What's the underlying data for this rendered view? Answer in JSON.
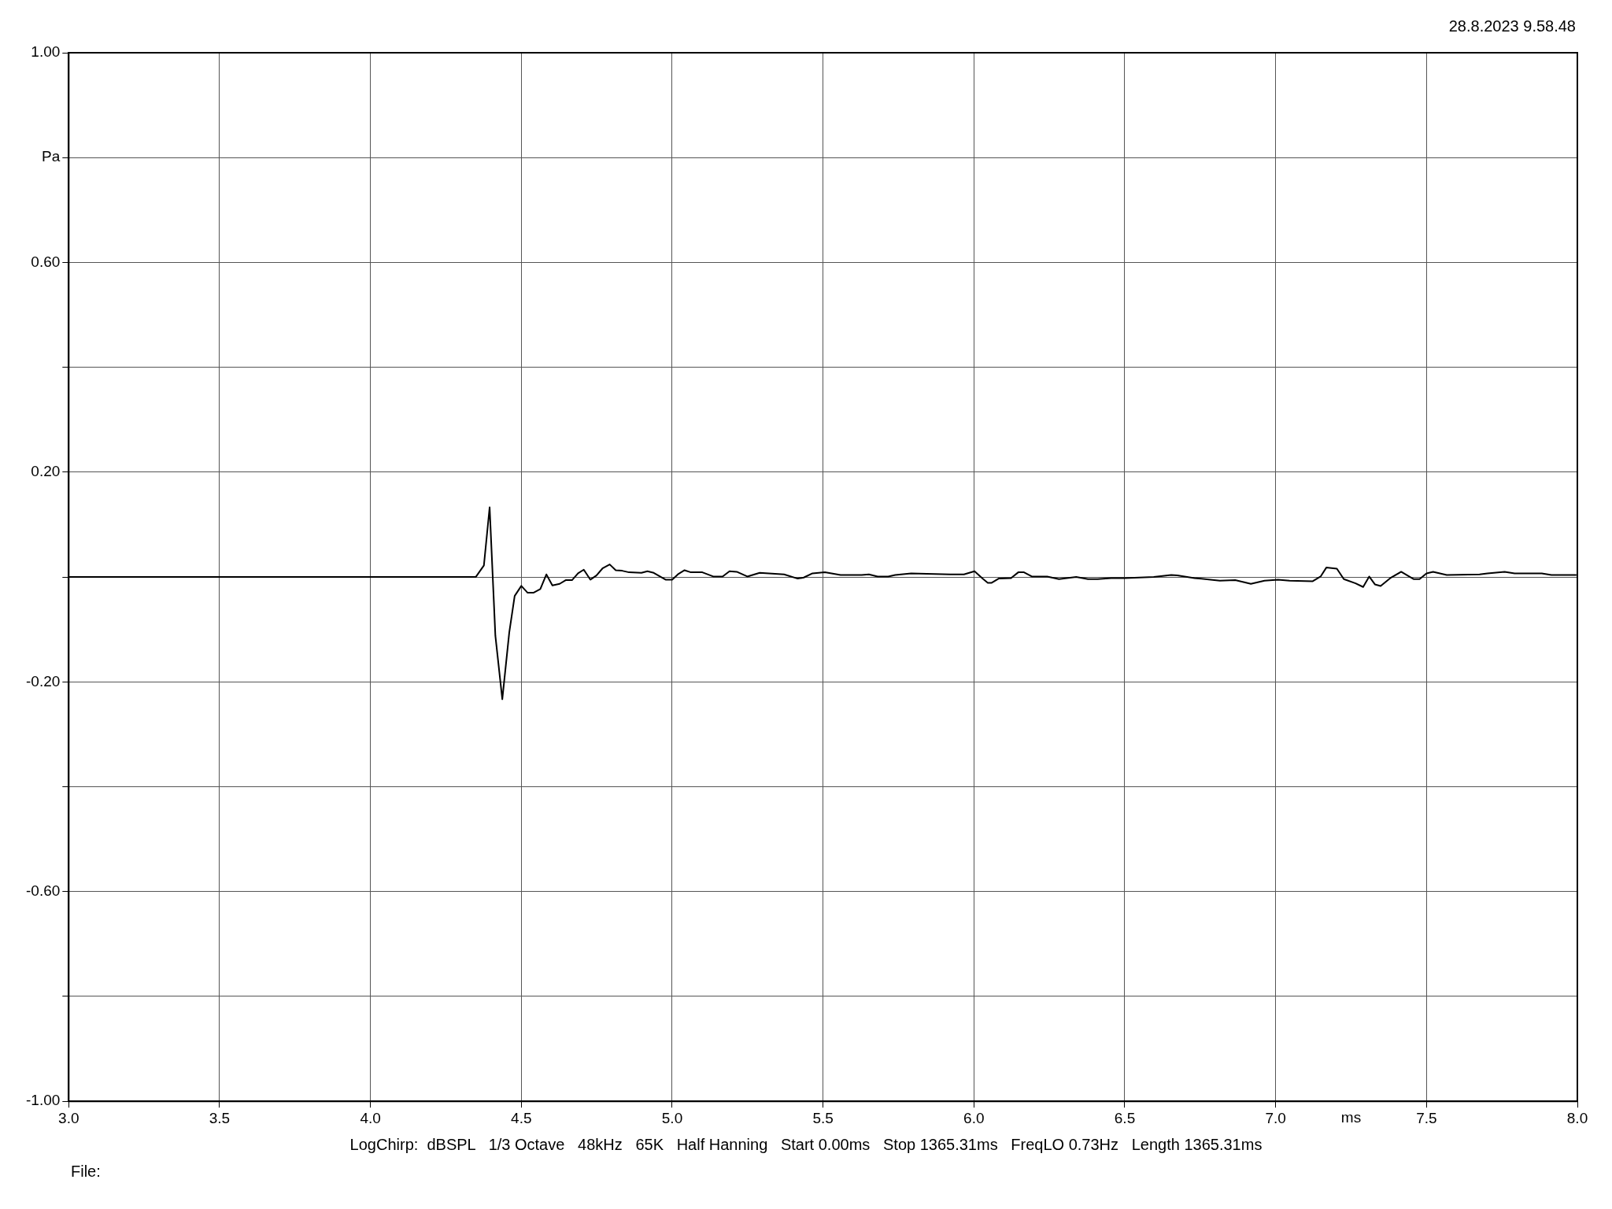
{
  "chart_data": {
    "type": "line",
    "xlabel": "ms",
    "annotations": [
      "28.8.2023 9.58.48",
      "LogChirp:  dBSPL   1/3 Octave   48kHz   65K   Half Hanning   Start 0.00ms   Stop 1365.31ms   FreqLO 0.73Hz   Length 1365.31ms",
      "File:"
    ],
    "xlim": [
      3.0,
      8.0
    ],
    "xticks": [
      {
        "value": 3,
        "label": "3.0"
      },
      {
        "value": 3.5,
        "label": "3.5"
      },
      {
        "value": 4,
        "label": "4.0"
      },
      {
        "value": 4.5,
        "label": "4.5"
      },
      {
        "value": 5,
        "label": "5.0"
      },
      {
        "value": 5.5,
        "label": "5.5"
      },
      {
        "value": 6,
        "label": "6.0"
      },
      {
        "value": 6.5,
        "label": "6.5"
      },
      {
        "value": 7,
        "label": "7.0"
      },
      {
        "value": 7.5,
        "label": "7.5"
      },
      {
        "value": 8,
        "label": "8.0"
      }
    ],
    "ylim": [
      -1.0,
      1.0
    ],
    "yticks": [
      {
        "value": -1,
        "label": "-1.00"
      },
      {
        "value": -0.8,
        "label": null
      },
      {
        "value": -0.6,
        "label": "-0.60"
      },
      {
        "value": -0.4,
        "label": null
      },
      {
        "value": -0.2,
        "label": "-0.20"
      },
      {
        "value": 0,
        "label": null
      },
      {
        "value": 0.2,
        "label": "0.20"
      },
      {
        "value": 0.4,
        "label": null
      },
      {
        "value": 0.6,
        "label": "0.60"
      },
      {
        "value": 0.8,
        "label": "Pa"
      },
      {
        "value": 1,
        "label": "1.00"
      }
    ],
    "grid": true,
    "legend": false,
    "marker": "none",
    "line_style": "solid",
    "series": [
      {
        "color": "#000000",
        "x": [
          3.0,
          4.349,
          4.376,
          4.395,
          4.414,
          4.437,
          4.46,
          4.478,
          4.5,
          4.521,
          4.54,
          4.563,
          4.583,
          4.603,
          4.627,
          4.647,
          4.668,
          4.688,
          4.707,
          4.729,
          4.749,
          4.77,
          4.793,
          4.813,
          4.834,
          4.857,
          4.898,
          4.918,
          4.939,
          4.978,
          5.0,
          5.021,
          5.041,
          5.062,
          5.1,
          5.136,
          5.167,
          5.19,
          5.214,
          5.249,
          5.29,
          5.371,
          5.416,
          5.436,
          5.465,
          5.506,
          5.558,
          5.628,
          5.652,
          5.681,
          5.716,
          5.739,
          5.792,
          5.921,
          5.967,
          6.002,
          6.031,
          6.046,
          6.059,
          6.082,
          6.123,
          6.147,
          6.166,
          6.192,
          6.243,
          6.282,
          6.339,
          6.378,
          6.41,
          6.455,
          6.5,
          6.596,
          6.654,
          6.674,
          6.731,
          6.815,
          6.866,
          6.918,
          6.963,
          7.008,
          7.046,
          7.123,
          7.149,
          7.168,
          7.203,
          7.226,
          7.265,
          7.29,
          7.31,
          7.329,
          7.348,
          7.38,
          7.416,
          7.458,
          7.477,
          7.5,
          7.522,
          7.567,
          7.676,
          7.702,
          7.759,
          7.792,
          7.882,
          7.914,
          7.997
        ],
        "values": [
          0,
          0,
          0.022,
          0.133,
          -0.112,
          -0.233,
          -0.106,
          -0.036,
          -0.017,
          -0.03,
          -0.03,
          -0.023,
          0.005,
          -0.016,
          -0.013,
          -0.006,
          -0.006,
          0.007,
          0.014,
          -0.005,
          0.003,
          0.017,
          0.024,
          0.013,
          0.012,
          0.009,
          0.008,
          0.011,
          0.008,
          -0.005,
          -0.005,
          0.006,
          0.013,
          0.009,
          0.009,
          0.001,
          0.001,
          0.011,
          0.01,
          0.001,
          0.008,
          0.005,
          -0.003,
          -0.001,
          0.007,
          0.009,
          0.004,
          0.004,
          0.005,
          0.001,
          0.001,
          0.004,
          0.007,
          0.005,
          0.005,
          0.011,
          -0.004,
          -0.011,
          -0.011,
          -0.003,
          -0.002,
          0.009,
          0.009,
          0.001,
          0.001,
          -0.004,
          0,
          -0.004,
          -0.004,
          -0.002,
          -0.002,
          0,
          0.004,
          0.003,
          -0.002,
          -0.007,
          -0.006,
          -0.013,
          -0.007,
          -0.005,
          -0.007,
          -0.008,
          0.001,
          0.018,
          0.016,
          -0.004,
          -0.012,
          -0.019,
          0.001,
          -0.014,
          -0.017,
          -0.002,
          0.01,
          -0.004,
          -0.004,
          0.007,
          0.01,
          0.004,
          0.005,
          0.007,
          0.01,
          0.007,
          0.007,
          0.004,
          0.004
        ]
      }
    ]
  }
}
